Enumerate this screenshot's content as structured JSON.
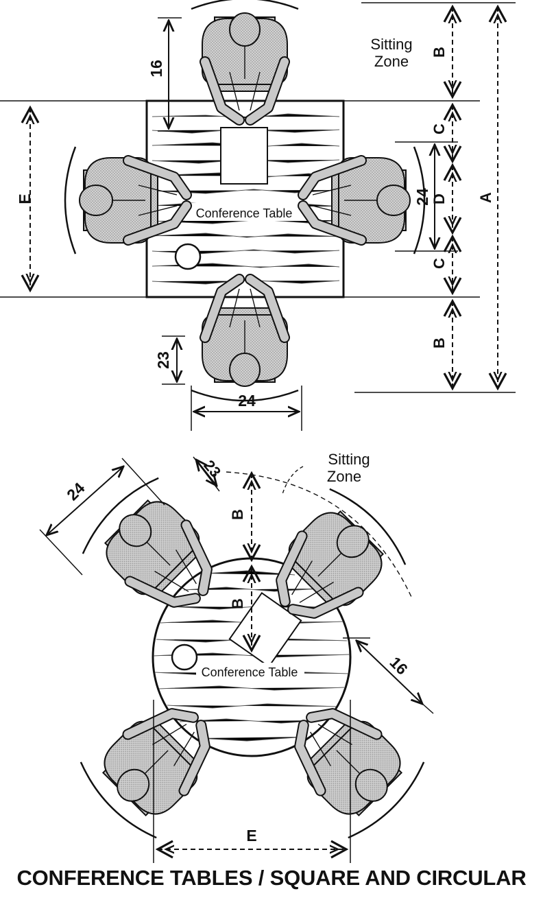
{
  "square": {
    "sitting_zone": [
      "Sitting",
      "Zone"
    ],
    "table_label": "Conference Table",
    "dims": {
      "d16": "16",
      "d24_right": "24",
      "d23": "23",
      "d24_bottom": "24"
    },
    "letters": {
      "E": "E",
      "B_top": "B",
      "C_top": "C",
      "D": "D",
      "C_bot": "C",
      "B_bot": "B",
      "A": "A"
    }
  },
  "circular": {
    "sitting_zone": [
      "Sitting",
      "Zone"
    ],
    "table_label": "Conference Table",
    "dims": {
      "d24": "24",
      "d23": "23",
      "d16": "16"
    },
    "letters": {
      "B_outer": "B",
      "B_inner": "B",
      "E": "E"
    }
  },
  "caption": "CONFERENCE TABLES / SQUARE AND CIRCULAR",
  "colors": {
    "ink": "#111111",
    "person_fill": "#c9c9c9",
    "paper": "#ffffff"
  }
}
